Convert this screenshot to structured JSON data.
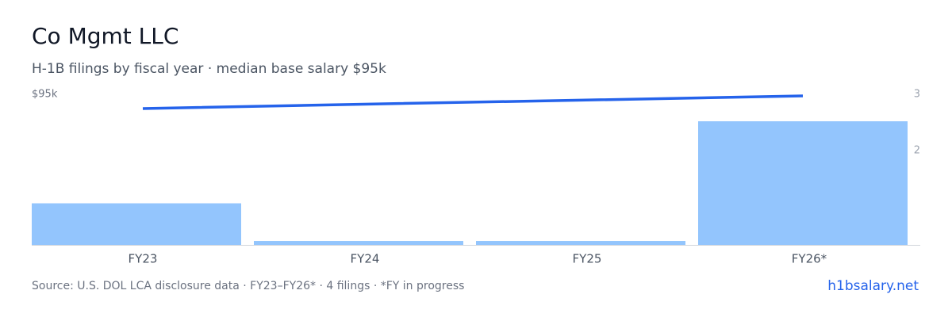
{
  "chart_data": {
    "type": "bar-line",
    "title": "Co Mgmt LLC",
    "subtitle": "H-1B filings by fiscal year · median base salary $95k",
    "categories": [
      "FY23",
      "FY24",
      "FY25",
      "FY26*"
    ],
    "series": [
      {
        "name": "Filings",
        "type": "bar",
        "axis": "y2",
        "color": "#93c5fd",
        "values": [
          1.06,
          0.39,
          0.39,
          2.52
        ]
      },
      {
        "name": "Median base salary",
        "type": "line",
        "axis": "y",
        "color": "#2563eb",
        "values": [
          86000,
          88700,
          91300,
          94000
        ]
      }
    ],
    "ylim": [
      0,
      95000
    ],
    "yticks": [
      {
        "value": 95000,
        "label": "$95k"
      }
    ],
    "y2lim": [
      0.32,
      3
    ],
    "y2ticks": [
      2,
      3
    ],
    "source": "Source: U.S. DOL LCA disclosure data · FY23–FY26* · 4 filings · *FY in progress",
    "site": "h1bsalary.net"
  }
}
